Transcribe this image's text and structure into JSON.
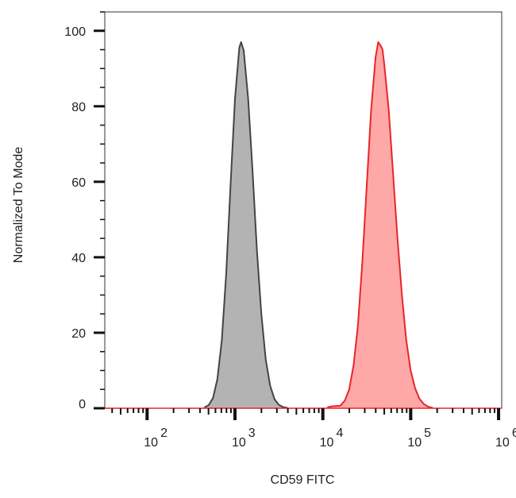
{
  "chart_data": {
    "type": "area",
    "title": "",
    "xlabel": "CD59 FITC",
    "ylabel": "Normalized To Mode",
    "xscale": "log",
    "xlim": [
      33,
      1086000
    ],
    "ylim": [
      0,
      105
    ],
    "grid": false,
    "legend": "none",
    "x_ticks": [
      {
        "base": "10",
        "exp": "2",
        "value": 100
      },
      {
        "base": "10",
        "exp": "3",
        "value": 1000
      },
      {
        "base": "10",
        "exp": "4",
        "value": 10000
      },
      {
        "base": "10",
        "exp": "5",
        "value": 100000
      },
      {
        "base": "10",
        "exp": "6",
        "value": 1000000
      }
    ],
    "y_ticks": [
      {
        "label": "0",
        "value": 0
      },
      {
        "label": "20",
        "value": 20
      },
      {
        "label": "40",
        "value": 40
      },
      {
        "label": "60",
        "value": 60
      },
      {
        "label": "80",
        "value": 80
      },
      {
        "label": "100",
        "value": 100
      }
    ],
    "series": [
      {
        "stroke": "#444444",
        "fill": "#b3b3b3",
        "x": [
          447,
          501,
          562,
          631,
          708,
          794,
          891,
          1000,
          1122,
          1175,
          1259,
          1413,
          1585,
          1778,
          1995,
          2239,
          2512,
          2818,
          3162,
          3548,
          3981
        ],
        "y": [
          0.2,
          0.8,
          2.7,
          7.7,
          18,
          35.5,
          59,
          82,
          95.6,
          97,
          94.8,
          82,
          63,
          42,
          25,
          13,
          6,
          2.4,
          0.9,
          0.3,
          0.1
        ]
      },
      {
        "stroke": "#e8262b",
        "fill": "#ffa8a8",
        "x": [
          11220,
          12589,
          15849,
          17783,
          19953,
          22387,
          25119,
          28184,
          31623,
          35481,
          39811,
          42658,
          45709,
          47863,
          50119,
          56234,
          63096,
          70795,
          79433,
          89125,
          100000,
          112202,
          125893,
          141254,
          158489,
          177828
        ],
        "y": [
          0.2,
          0.5,
          0.7,
          2,
          5,
          11.4,
          22,
          39,
          59,
          79,
          93,
          97,
          96,
          95,
          91,
          79,
          62,
          45,
          30,
          18,
          10,
          5.3,
          2.5,
          1.1,
          0.4,
          0.1
        ]
      }
    ]
  }
}
